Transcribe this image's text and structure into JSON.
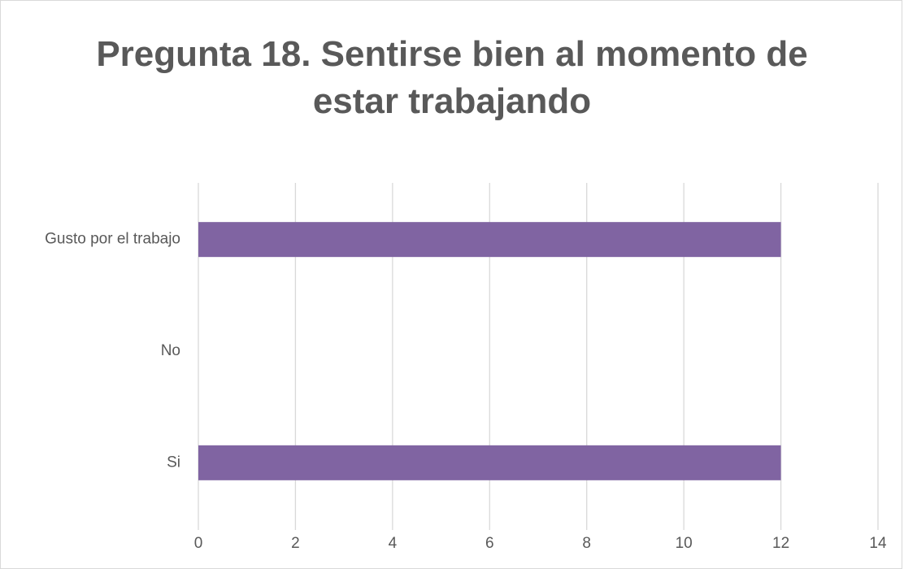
{
  "chart_data": {
    "type": "hbar",
    "title": "Pregunta 18. Sentirse bien al momento de estar trabajando",
    "categories": [
      "Gusto por el trabajo",
      "No",
      "Si"
    ],
    "values": [
      12,
      0,
      12
    ],
    "color": "#8064a2",
    "xlim": [
      0,
      14
    ],
    "xticks": [
      0,
      2,
      4,
      6,
      8,
      10,
      12,
      14
    ],
    "grid": true
  }
}
